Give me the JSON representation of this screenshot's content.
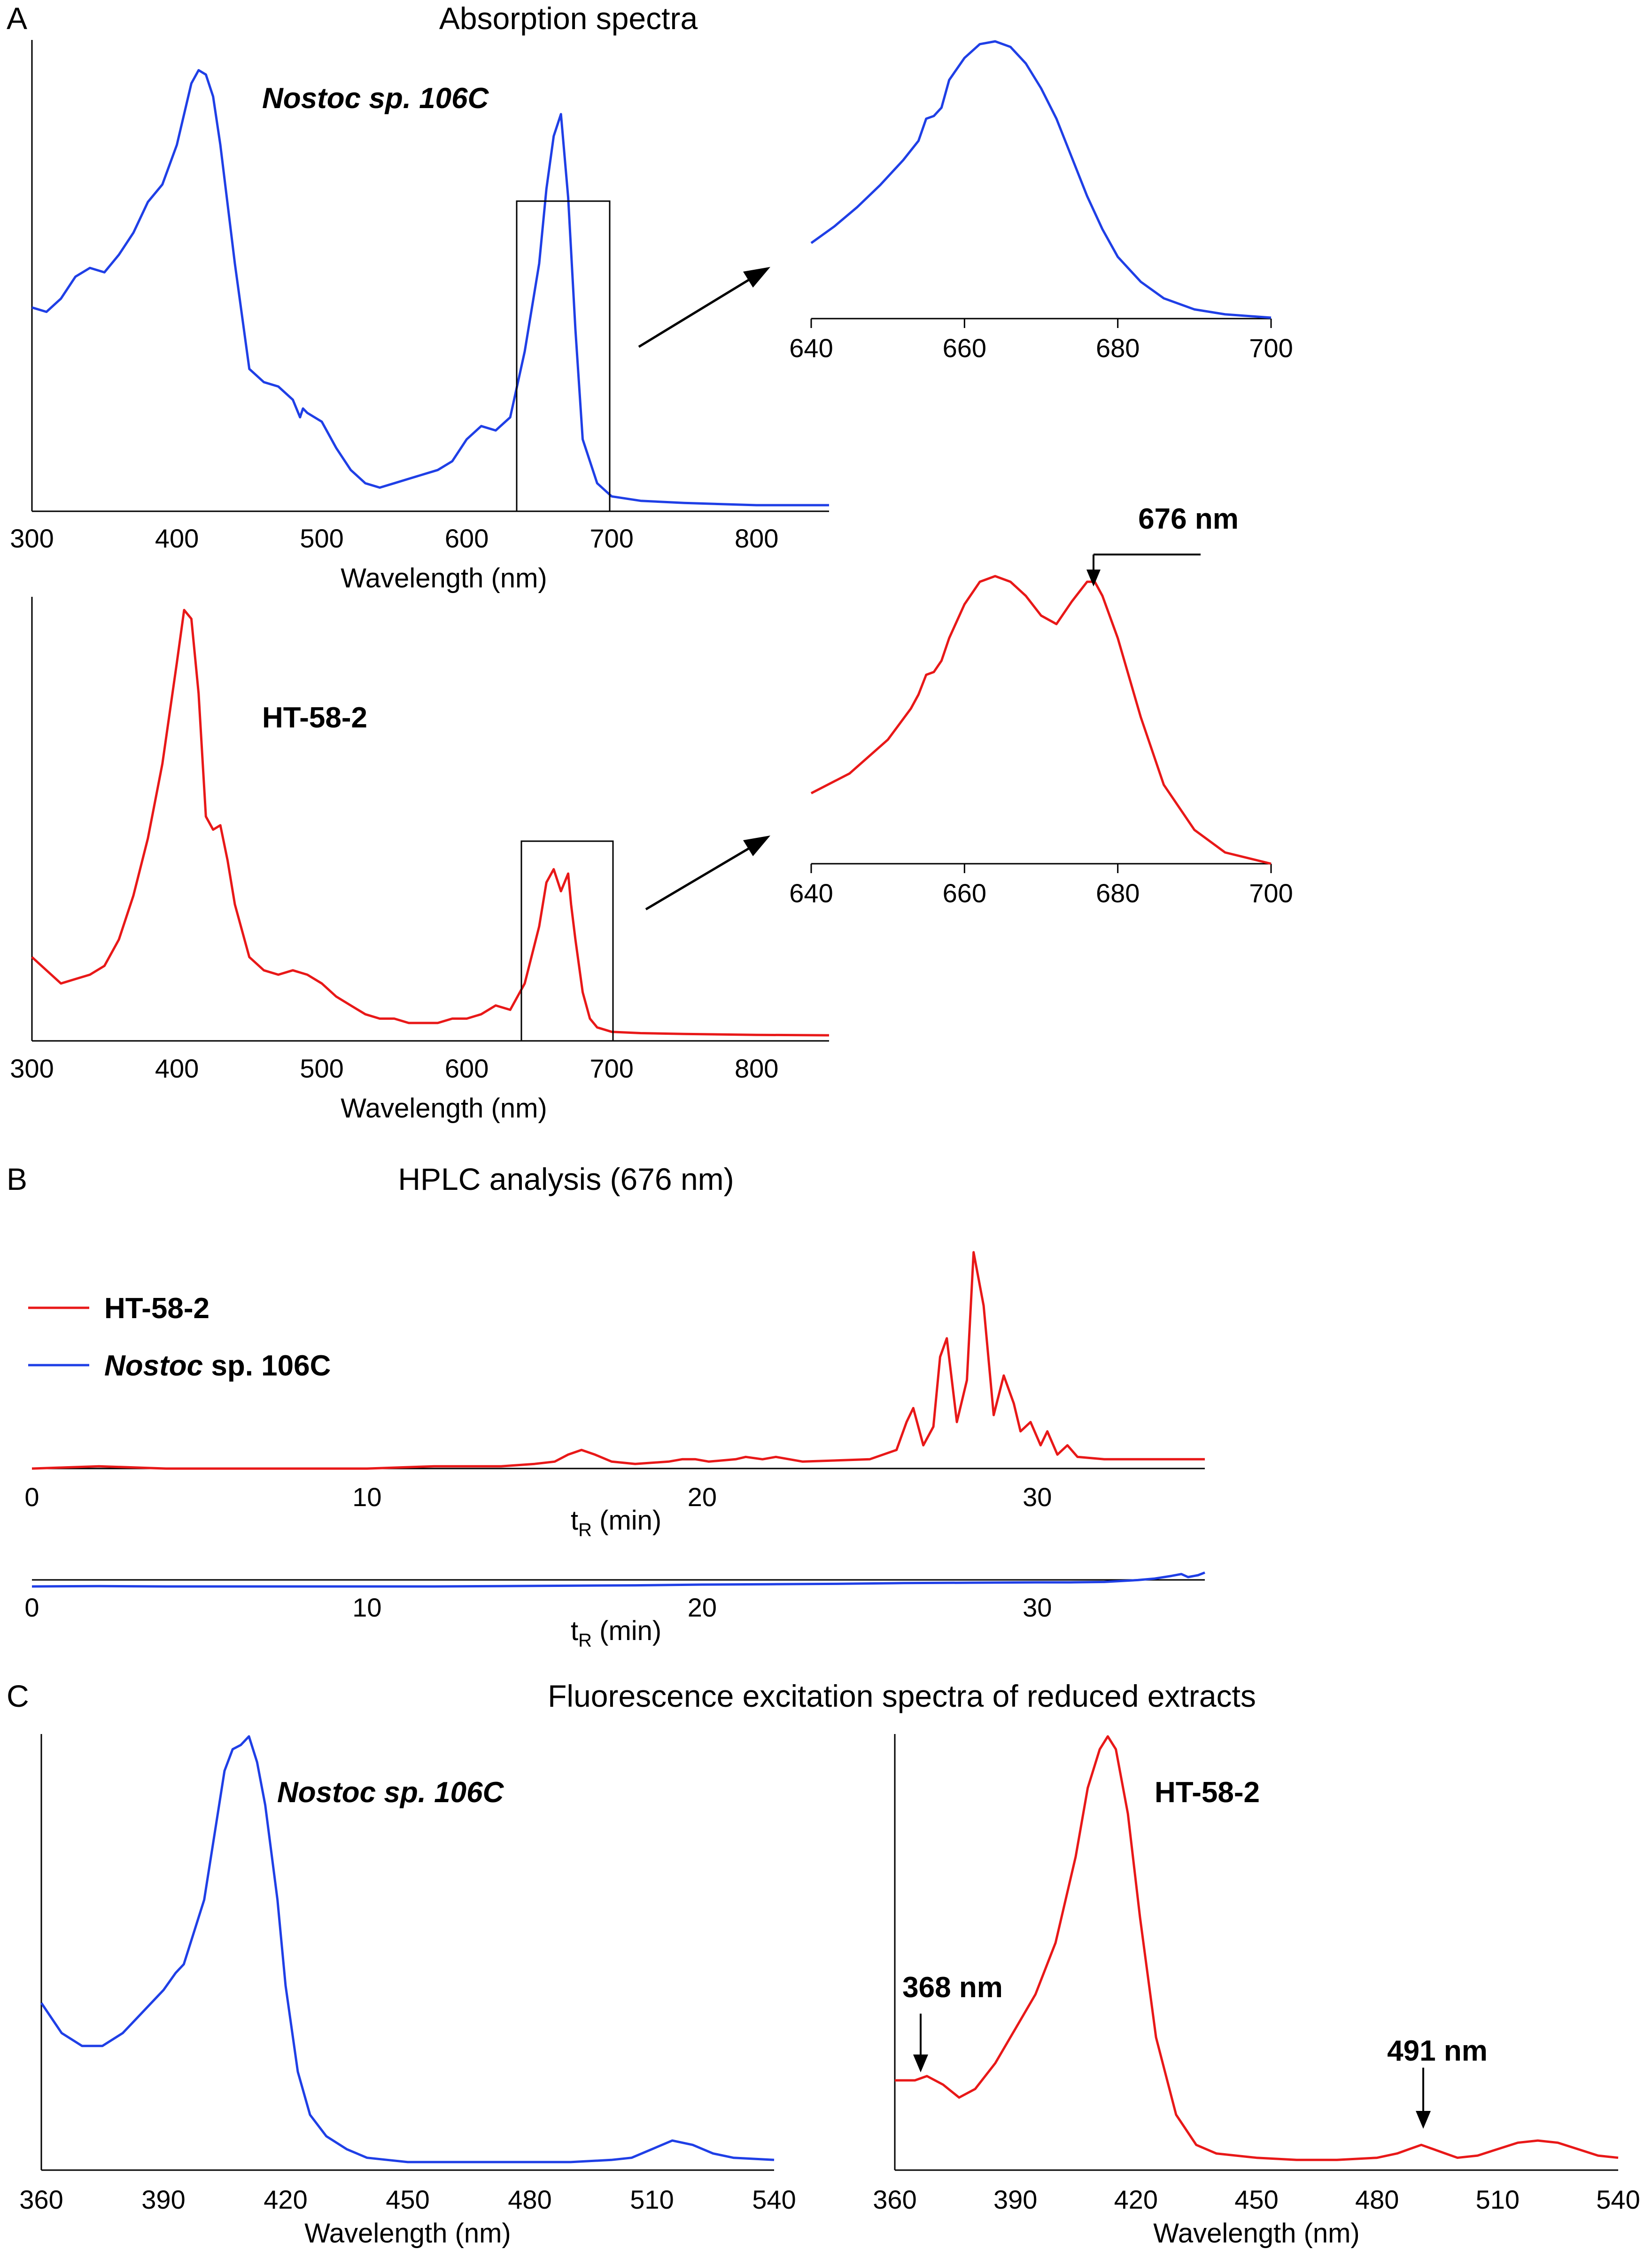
{
  "titles": {
    "A": "Absorption spectra",
    "B": "HPLC analysis (676 nm)",
    "C": "Fluorescence excitation spectra of reduced extracts"
  },
  "panel_labels": {
    "A": "A",
    "B": "B",
    "C": "C"
  },
  "labels": {
    "nostoc_italic": "Nostoc sp. 106C",
    "ht": "HT-58-2",
    "legend_ht": "HT-58-2",
    "legend_nostoc_genus": "Nostoc",
    "legend_nostoc_rest": " sp. 106C",
    "wavelength_axis": "Wavelength (nm)",
    "tr_t": "t",
    "tr_sub": "R",
    "tr_unit": " (min)",
    "ann_676": "676 nm",
    "ann_368": "368 nm",
    "ann_491": "491 nm"
  },
  "colors": {
    "nostoc": "#1f3fe6",
    "ht": "#e81818",
    "axis": "#000000"
  },
  "chart_data": [
    {
      "id": "A-nostoc-full",
      "type": "line",
      "title": "Absorption spectra",
      "series_name": "Nostoc sp. 106C",
      "xlabel": "Wavelength (nm)",
      "ylabel": "",
      "xlim": [
        300,
        850
      ],
      "ylim": [
        0,
        1
      ],
      "xticks": [
        300,
        400,
        500,
        600,
        700,
        800
      ],
      "x": [
        300,
        310,
        320,
        330,
        340,
        350,
        355,
        360,
        370,
        380,
        390,
        400,
        410,
        415,
        420,
        425,
        430,
        440,
        450,
        460,
        470,
        480,
        485,
        487,
        490,
        500,
        510,
        520,
        530,
        540,
        550,
        560,
        570,
        580,
        590,
        600,
        610,
        620,
        630,
        640,
        650,
        655,
        660,
        665,
        670,
        675,
        680,
        690,
        700,
        720,
        750,
        800,
        850
      ],
      "y": [
        0.45,
        0.44,
        0.47,
        0.52,
        0.54,
        0.53,
        0.55,
        0.57,
        0.62,
        0.69,
        0.73,
        0.82,
        0.96,
        0.99,
        0.98,
        0.93,
        0.82,
        0.55,
        0.31,
        0.28,
        0.27,
        0.24,
        0.2,
        0.22,
        0.21,
        0.19,
        0.13,
        0.08,
        0.05,
        0.04,
        0.05,
        0.06,
        0.07,
        0.08,
        0.1,
        0.15,
        0.18,
        0.17,
        0.2,
        0.35,
        0.55,
        0.72,
        0.84,
        0.89,
        0.7,
        0.4,
        0.15,
        0.05,
        0.02,
        0.01,
        0.005,
        0.0,
        0.0
      ]
    },
    {
      "id": "A-nostoc-inset",
      "type": "line",
      "series_name": "Nostoc sp. 106C",
      "xlim": [
        640,
        700
      ],
      "ylim": [
        0,
        1
      ],
      "xticks": [
        640,
        660,
        680,
        700
      ],
      "x": [
        640,
        643,
        646,
        649,
        652,
        654,
        655,
        656,
        657,
        658,
        660,
        662,
        664,
        666,
        668,
        670,
        672,
        674,
        676,
        678,
        680,
        683,
        686,
        690,
        694,
        700
      ],
      "y": [
        0.27,
        0.33,
        0.4,
        0.48,
        0.57,
        0.64,
        0.72,
        0.73,
        0.76,
        0.86,
        0.94,
        0.99,
        1.0,
        0.98,
        0.92,
        0.83,
        0.72,
        0.58,
        0.44,
        0.32,
        0.22,
        0.13,
        0.07,
        0.03,
        0.012,
        0.0
      ]
    },
    {
      "id": "A-ht-full",
      "type": "line",
      "series_name": "HT-58-2",
      "xlabel": "Wavelength (nm)",
      "xlim": [
        300,
        850
      ],
      "ylim": [
        0,
        1
      ],
      "xticks": [
        300,
        400,
        500,
        600,
        700,
        800
      ],
      "x": [
        300,
        310,
        320,
        330,
        340,
        350,
        360,
        370,
        380,
        390,
        400,
        405,
        410,
        415,
        420,
        425,
        430,
        435,
        440,
        450,
        460,
        470,
        480,
        490,
        500,
        510,
        520,
        530,
        540,
        550,
        560,
        570,
        580,
        590,
        600,
        610,
        620,
        630,
        640,
        650,
        655,
        660,
        665,
        670,
        672,
        675,
        680,
        685,
        690,
        700,
        720,
        750,
        800,
        850
      ],
      "y": [
        0.18,
        0.15,
        0.12,
        0.13,
        0.14,
        0.16,
        0.22,
        0.32,
        0.45,
        0.62,
        0.85,
        0.97,
        0.95,
        0.78,
        0.5,
        0.47,
        0.48,
        0.4,
        0.3,
        0.18,
        0.15,
        0.14,
        0.15,
        0.14,
        0.12,
        0.09,
        0.07,
        0.05,
        0.04,
        0.04,
        0.03,
        0.03,
        0.03,
        0.04,
        0.04,
        0.05,
        0.07,
        0.06,
        0.12,
        0.25,
        0.35,
        0.38,
        0.33,
        0.37,
        0.3,
        0.22,
        0.1,
        0.04,
        0.02,
        0.01,
        0.007,
        0.005,
        0.003,
        0.002
      ]
    },
    {
      "id": "A-ht-inset",
      "type": "line",
      "series_name": "HT-58-2",
      "xlim": [
        640,
        700
      ],
      "ylim": [
        0,
        1
      ],
      "xticks": [
        640,
        660,
        680,
        700
      ],
      "x": [
        640,
        645,
        650,
        653,
        654,
        655,
        656,
        657,
        658,
        660,
        662,
        664,
        666,
        668,
        670,
        672,
        674,
        676,
        677,
        678,
        680,
        683,
        686,
        690,
        694,
        700
      ],
      "y": [
        0.25,
        0.32,
        0.44,
        0.55,
        0.6,
        0.67,
        0.68,
        0.72,
        0.8,
        0.92,
        1.0,
        1.02,
        1.0,
        0.95,
        0.88,
        0.85,
        0.93,
        1.0,
        1.0,
        0.95,
        0.8,
        0.52,
        0.28,
        0.12,
        0.04,
        0.0
      ]
    },
    {
      "id": "B-ht",
      "type": "line",
      "title": "HPLC analysis (676 nm)",
      "series_name": "HT-58-2",
      "xlabel": "tR (min)",
      "xlim": [
        0,
        35
      ],
      "ylim": [
        0,
        1
      ],
      "xticks": [
        0,
        10,
        20,
        30
      ],
      "x": [
        0,
        2,
        4,
        6,
        8,
        10,
        12,
        14,
        15,
        15.6,
        16,
        16.4,
        16.8,
        17.3,
        18,
        19,
        19.4,
        19.8,
        20.2,
        21,
        21.3,
        21.8,
        22.2,
        23,
        25,
        25.8,
        26.1,
        26.3,
        26.6,
        26.9,
        27.1,
        27.3,
        27.6,
        27.9,
        28.1,
        28.4,
        28.7,
        29,
        29.3,
        29.5,
        29.8,
        30.1,
        30.3,
        30.6,
        30.9,
        31.2,
        32,
        33,
        35
      ],
      "y": [
        0.02,
        0.03,
        0.02,
        0.02,
        0.02,
        0.02,
        0.03,
        0.03,
        0.04,
        0.05,
        0.08,
        0.1,
        0.08,
        0.05,
        0.04,
        0.05,
        0.06,
        0.06,
        0.05,
        0.06,
        0.07,
        0.06,
        0.07,
        0.05,
        0.06,
        0.1,
        0.22,
        0.28,
        0.12,
        0.2,
        0.5,
        0.58,
        0.22,
        0.4,
        0.95,
        0.72,
        0.25,
        0.42,
        0.3,
        0.18,
        0.22,
        0.12,
        0.18,
        0.08,
        0.12,
        0.07,
        0.06,
        0.06,
        0.06
      ]
    },
    {
      "id": "B-nostoc",
      "type": "line",
      "series_name": "Nostoc sp. 106C",
      "xlabel": "tR (min)",
      "xlim": [
        0,
        35
      ],
      "ylim": [
        0,
        1
      ],
      "xticks": [
        0,
        10,
        20,
        30
      ],
      "x": [
        0,
        2,
        4,
        6,
        8,
        10,
        12,
        14,
        16,
        18,
        20,
        22,
        24,
        26,
        28,
        30,
        31,
        32,
        33,
        33.5,
        34,
        34.3,
        34.5,
        34.8,
        35
      ],
      "y": [
        0.05,
        0.06,
        0.05,
        0.05,
        0.05,
        0.05,
        0.05,
        0.06,
        0.07,
        0.08,
        0.1,
        0.11,
        0.12,
        0.14,
        0.15,
        0.16,
        0.16,
        0.17,
        0.22,
        0.26,
        0.33,
        0.38,
        0.3,
        0.35,
        0.42
      ]
    },
    {
      "id": "C-nostoc",
      "type": "line",
      "title": "Fluorescence excitation spectra of reduced extracts",
      "series_name": "Nostoc sp. 106C",
      "xlabel": "Wavelength (nm)",
      "xlim": [
        360,
        540
      ],
      "ylim": [
        0,
        1
      ],
      "xticks": [
        360,
        390,
        420,
        450,
        480,
        510,
        540
      ],
      "x": [
        360,
        365,
        370,
        375,
        380,
        385,
        390,
        393,
        395,
        400,
        403,
        405,
        407,
        409,
        411,
        413,
        415,
        418,
        420,
        423,
        426,
        430,
        435,
        440,
        445,
        450,
        460,
        470,
        480,
        490,
        500,
        505,
        510,
        515,
        520,
        525,
        530,
        540
      ],
      "y": [
        0.38,
        0.31,
        0.28,
        0.28,
        0.31,
        0.36,
        0.41,
        0.45,
        0.47,
        0.62,
        0.8,
        0.92,
        0.97,
        0.98,
        1.0,
        0.94,
        0.84,
        0.62,
        0.42,
        0.22,
        0.12,
        0.07,
        0.04,
        0.02,
        0.015,
        0.01,
        0.01,
        0.01,
        0.01,
        0.01,
        0.015,
        0.02,
        0.04,
        0.06,
        0.05,
        0.03,
        0.02,
        0.015
      ]
    },
    {
      "id": "C-ht",
      "type": "line",
      "series_name": "HT-58-2",
      "xlabel": "Wavelength (nm)",
      "xlim": [
        360,
        540
      ],
      "ylim": [
        0,
        1
      ],
      "xticks": [
        360,
        390,
        420,
        450,
        480,
        510,
        540
      ],
      "x": [
        360,
        365,
        368,
        372,
        376,
        380,
        385,
        390,
        395,
        400,
        405,
        408,
        411,
        413,
        415,
        418,
        421,
        425,
        430,
        435,
        440,
        450,
        460,
        470,
        480,
        485,
        488,
        491,
        494,
        497,
        500,
        505,
        510,
        515,
        520,
        525,
        530,
        535,
        540
      ],
      "y": [
        0.2,
        0.2,
        0.21,
        0.19,
        0.16,
        0.18,
        0.24,
        0.32,
        0.4,
        0.52,
        0.72,
        0.88,
        0.97,
        1.0,
        0.97,
        0.82,
        0.58,
        0.3,
        0.12,
        0.05,
        0.03,
        0.02,
        0.015,
        0.015,
        0.02,
        0.03,
        0.04,
        0.05,
        0.04,
        0.03,
        0.02,
        0.025,
        0.04,
        0.055,
        0.06,
        0.055,
        0.04,
        0.025,
        0.02
      ]
    }
  ]
}
